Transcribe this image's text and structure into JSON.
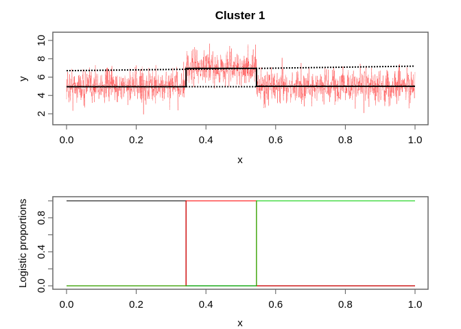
{
  "chart_data": [
    {
      "type": "line",
      "title": "Cluster 1",
      "xlabel": "x",
      "ylabel": "y",
      "xlim": [
        0,
        1
      ],
      "ylim": [
        1.2,
        10.5
      ],
      "xticks": [
        "0.0",
        "0.2",
        "0.4",
        "0.6",
        "0.8",
        "1.0"
      ],
      "yticks": [
        "2",
        "4",
        "6",
        "8",
        "10"
      ],
      "breakpoints": [
        0.343,
        0.545
      ],
      "series": [
        {
          "style": "red dotted noisy observations",
          "color": "#ff0000",
          "segment_means": [
            5.0,
            7.0,
            5.0
          ]
        },
        {
          "style": "solid black fitted mean",
          "color": "#000000",
          "x": [
            0,
            0.343,
            0.343,
            0.545,
            0.545,
            1
          ],
          "y": [
            4.95,
            4.95,
            6.95,
            6.95,
            5.0,
            5.0
          ]
        },
        {
          "style": "dotted black upper",
          "color": "#000000",
          "x": [
            0,
            0.343,
            0.545,
            1
          ],
          "y": [
            6.7,
            6.85,
            6.95,
            7.2
          ]
        },
        {
          "style": "dotted black lower",
          "color": "#000000",
          "x": [
            0.343,
            0.545
          ],
          "y": [
            4.95,
            4.95
          ]
        }
      ]
    },
    {
      "type": "line",
      "xlabel": "x",
      "ylabel": "Logistic proportions",
      "xlim": [
        0,
        1
      ],
      "ylim": [
        -0.04,
        1.04
      ],
      "xticks": [
        "0.0",
        "0.2",
        "0.4",
        "0.6",
        "0.8",
        "1.0"
      ],
      "yticks": [
        "0.0",
        "0.4",
        "0.8"
      ],
      "series": [
        {
          "color": "#000000",
          "x": [
            0,
            0.343,
            0.343,
            1
          ],
          "y": [
            1,
            1,
            0,
            0
          ]
        },
        {
          "color": "#ff0000",
          "x": [
            0,
            0.343,
            0.343,
            0.545,
            0.545,
            1
          ],
          "y": [
            0,
            0,
            1,
            1,
            0,
            0
          ]
        },
        {
          "color": "#00cc00",
          "x": [
            0,
            0.545,
            0.545,
            1
          ],
          "y": [
            0,
            0,
            1,
            1
          ]
        }
      ]
    }
  ]
}
